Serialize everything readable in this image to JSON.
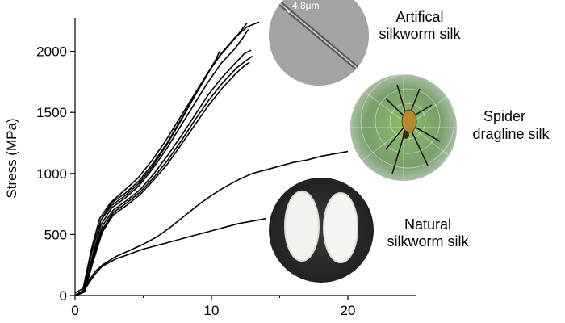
{
  "chart_data": {
    "type": "line",
    "xlabel": "",
    "ylabel": "Stress (MPa)",
    "xlim": [
      0,
      25
    ],
    "ylim": [
      0,
      2250
    ],
    "x_ticks": [
      "0",
      "10",
      "20"
    ],
    "y_ticks": [
      "0",
      "500",
      "1000",
      "1500",
      "2000"
    ],
    "grid": false,
    "series": [
      {
        "group": "artificial",
        "points": [
          [
            0,
            20
          ],
          [
            0.6,
            60
          ],
          [
            1.2,
            380
          ],
          [
            1.8,
            630
          ],
          [
            2.6,
            760
          ],
          [
            3.6,
            860
          ],
          [
            4.6,
            960
          ],
          [
            5.6,
            1100
          ],
          [
            6.6,
            1260
          ],
          [
            7.6,
            1440
          ],
          [
            8.6,
            1620
          ],
          [
            9.6,
            1800
          ],
          [
            10.6,
            1960
          ],
          [
            11.6,
            2090
          ],
          [
            12.1,
            2160
          ],
          [
            12.6,
            2230
          ]
        ]
      },
      {
        "group": "artificial",
        "points": [
          [
            0,
            0
          ],
          [
            0.7,
            50
          ],
          [
            1.3,
            330
          ],
          [
            1.9,
            580
          ],
          [
            2.7,
            720
          ],
          [
            3.7,
            800
          ],
          [
            4.7,
            900
          ],
          [
            5.7,
            1040
          ],
          [
            6.7,
            1200
          ],
          [
            7.7,
            1380
          ],
          [
            8.7,
            1560
          ],
          [
            9.7,
            1740
          ],
          [
            10.7,
            1900
          ],
          [
            11.7,
            2020
          ],
          [
            12.3,
            2110
          ],
          [
            12.7,
            2180
          ]
        ]
      },
      {
        "group": "artificial",
        "points": [
          [
            0,
            0
          ],
          [
            0.6,
            40
          ],
          [
            1.2,
            340
          ],
          [
            1.9,
            620
          ],
          [
            2.7,
            760
          ],
          [
            3.7,
            840
          ],
          [
            4.7,
            940
          ],
          [
            5.7,
            1080
          ],
          [
            6.7,
            1240
          ],
          [
            7.7,
            1430
          ],
          [
            8.7,
            1620
          ],
          [
            9.7,
            1810
          ],
          [
            10.3,
            1930
          ],
          [
            10.6,
            2000
          ]
        ]
      },
      {
        "group": "artificial",
        "points": [
          [
            0,
            0
          ],
          [
            0.7,
            40
          ],
          [
            1.3,
            310
          ],
          [
            2.0,
            570
          ],
          [
            2.8,
            700
          ],
          [
            3.8,
            780
          ],
          [
            4.8,
            870
          ],
          [
            5.8,
            1000
          ],
          [
            6.8,
            1150
          ],
          [
            7.8,
            1310
          ],
          [
            8.8,
            1480
          ],
          [
            9.8,
            1650
          ],
          [
            10.8,
            1790
          ],
          [
            11.8,
            1910
          ],
          [
            12.4,
            1980
          ],
          [
            12.9,
            2010
          ]
        ]
      },
      {
        "group": "artificial",
        "points": [
          [
            0,
            0
          ],
          [
            0.7,
            30
          ],
          [
            1.3,
            280
          ],
          [
            2.0,
            540
          ],
          [
            2.8,
            680
          ],
          [
            3.8,
            760
          ],
          [
            4.8,
            850
          ],
          [
            5.8,
            970
          ],
          [
            6.8,
            1110
          ],
          [
            7.8,
            1270
          ],
          [
            8.8,
            1440
          ],
          [
            9.8,
            1600
          ],
          [
            10.8,
            1740
          ],
          [
            11.8,
            1860
          ],
          [
            12.6,
            1930
          ],
          [
            13.0,
            1960
          ]
        ]
      },
      {
        "group": "artificial",
        "points": [
          [
            0,
            0
          ],
          [
            0.7,
            30
          ],
          [
            1.3,
            270
          ],
          [
            2.0,
            520
          ],
          [
            2.8,
            660
          ],
          [
            3.8,
            740
          ],
          [
            4.8,
            830
          ],
          [
            5.8,
            950
          ],
          [
            6.8,
            1080
          ],
          [
            7.8,
            1240
          ],
          [
            8.8,
            1400
          ],
          [
            9.8,
            1560
          ],
          [
            10.8,
            1700
          ],
          [
            11.8,
            1820
          ],
          [
            12.5,
            1890
          ],
          [
            12.8,
            1910
          ]
        ]
      },
      {
        "group": "artificial",
        "points": [
          [
            0,
            0
          ],
          [
            0.6,
            40
          ],
          [
            1.2,
            350
          ],
          [
            1.9,
            620
          ],
          [
            2.7,
            740
          ],
          [
            3.7,
            820
          ],
          [
            4.7,
            920
          ],
          [
            5.7,
            1060
          ],
          [
            6.7,
            1230
          ],
          [
            7.7,
            1420
          ],
          [
            8.7,
            1620
          ],
          [
            9.7,
            1820
          ],
          [
            10.7,
            1980
          ],
          [
            11.7,
            2110
          ],
          [
            12.6,
            2200
          ],
          [
            13.5,
            2240
          ]
        ]
      },
      {
        "group": "spider",
        "points": [
          [
            0,
            0
          ],
          [
            0.5,
            30
          ],
          [
            1.0,
            120
          ],
          [
            1.5,
            200
          ],
          [
            2.0,
            250
          ],
          [
            3.0,
            320
          ],
          [
            4.0,
            370
          ],
          [
            5.0,
            420
          ],
          [
            6.0,
            480
          ],
          [
            7.0,
            560
          ],
          [
            8.0,
            650
          ],
          [
            9.0,
            740
          ],
          [
            10.0,
            820
          ],
          [
            11.0,
            890
          ],
          [
            12.0,
            950
          ],
          [
            13.0,
            1000
          ],
          [
            14.0,
            1030
          ],
          [
            15.0,
            1060
          ],
          [
            16.0,
            1090
          ],
          [
            17.0,
            1110
          ],
          [
            18.0,
            1140
          ],
          [
            19.0,
            1160
          ],
          [
            20.0,
            1180
          ]
        ]
      },
      {
        "group": "natural",
        "points": [
          [
            0,
            0
          ],
          [
            0.5,
            20
          ],
          [
            1.0,
            100
          ],
          [
            1.5,
            180
          ],
          [
            2.0,
            240
          ],
          [
            3.0,
            300
          ],
          [
            4.0,
            340
          ],
          [
            5.0,
            380
          ],
          [
            6.0,
            410
          ],
          [
            7.0,
            440
          ],
          [
            8.0,
            470
          ],
          [
            9.0,
            500
          ],
          [
            10.0,
            530
          ],
          [
            11.0,
            560
          ],
          [
            12.0,
            590
          ],
          [
            13.0,
            610
          ],
          [
            14.0,
            630
          ]
        ]
      }
    ],
    "annotations": {
      "artificial": [
        "Artifical",
        "silkworm silk"
      ],
      "spider": [
        "Spider",
        "dragline silk"
      ],
      "natural": [
        "Natural",
        "silkworm silk"
      ],
      "scale_bar": "4.8μm"
    }
  }
}
